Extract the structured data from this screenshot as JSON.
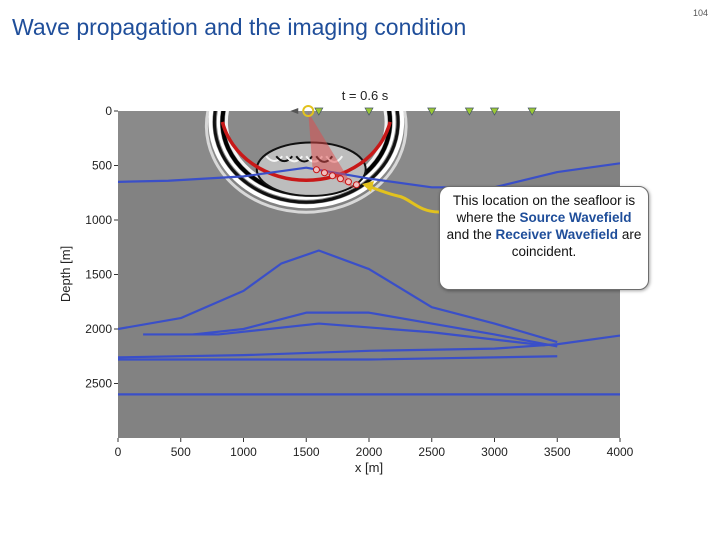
{
  "slide": {
    "title": "Wave propagation and the imaging condition",
    "page_number": "104"
  },
  "callout": {
    "line1": "This location on the seafloor is where the",
    "highlight1": "Source Wavefield",
    "mid": "and the",
    "highlight2": "Receiver Wavefield",
    "end": "are coincident."
  },
  "colors": {
    "title": "#1f4e9a",
    "highlight": "#1f4e9a",
    "horizon": "#3a4fc8",
    "arrow": "#e2c21e",
    "wavefront_red": "#c81818",
    "receiver": "#9bc834"
  },
  "chart_data": {
    "type": "seismic-section",
    "title": "t = 0.6 s",
    "xlabel": "x [m]",
    "ylabel": "Depth [m]",
    "xlim": [
      0,
      4000
    ],
    "ylim": [
      0,
      3000
    ],
    "x_ticks": [
      "0",
      "500",
      "1000",
      "1500",
      "2000",
      "2500",
      "3000",
      "3500",
      "4000"
    ],
    "y_ticks": [
      "0",
      "500",
      "1000",
      "1500",
      "2000",
      "2500"
    ],
    "source": {
      "x": 1500,
      "depth": 0
    },
    "receivers_x": [
      1600,
      2000,
      2500,
      2800,
      3000,
      3300
    ],
    "wavefront": {
      "center_x": 1500,
      "center_depth": 100,
      "radius": 700
    },
    "coincidence_point": {
      "x": 1900,
      "depth": 640
    },
    "horizons": [
      {
        "name": "seafloor",
        "points": [
          [
            0,
            650
          ],
          [
            400,
            640
          ],
          [
            1000,
            600
          ],
          [
            1500,
            520
          ],
          [
            2000,
            620
          ],
          [
            2500,
            700
          ],
          [
            3000,
            700
          ],
          [
            3500,
            560
          ],
          [
            4000,
            480
          ]
        ]
      },
      {
        "name": "dome-top",
        "points": [
          [
            0,
            2000
          ],
          [
            500,
            1900
          ],
          [
            1000,
            1650
          ],
          [
            1300,
            1400
          ],
          [
            1600,
            1280
          ],
          [
            2000,
            1450
          ],
          [
            2500,
            1800
          ],
          [
            3000,
            1950
          ],
          [
            3500,
            2120
          ]
        ]
      },
      {
        "name": "dome-mid",
        "points": [
          [
            600,
            2050
          ],
          [
            1000,
            2000
          ],
          [
            1500,
            1850
          ],
          [
            2000,
            1850
          ],
          [
            2500,
            1950
          ],
          [
            3000,
            2050
          ],
          [
            3500,
            2160
          ]
        ]
      },
      {
        "name": "dome-base",
        "points": [
          [
            200,
            2050
          ],
          [
            800,
            2050
          ],
          [
            1600,
            1950
          ],
          [
            2500,
            2030
          ],
          [
            3400,
            2150
          ]
        ]
      },
      {
        "name": "flat-1",
        "points": [
          [
            0,
            2260
          ],
          [
            1000,
            2240
          ],
          [
            2000,
            2200
          ],
          [
            3000,
            2180
          ],
          [
            3500,
            2140
          ],
          [
            4000,
            2060
          ]
        ]
      },
      {
        "name": "flat-2",
        "points": [
          [
            0,
            2280
          ],
          [
            2000,
            2280
          ],
          [
            3500,
            2250
          ]
        ]
      },
      {
        "name": "deep",
        "points": [
          [
            0,
            2600
          ],
          [
            4000,
            2600
          ]
        ]
      }
    ]
  }
}
